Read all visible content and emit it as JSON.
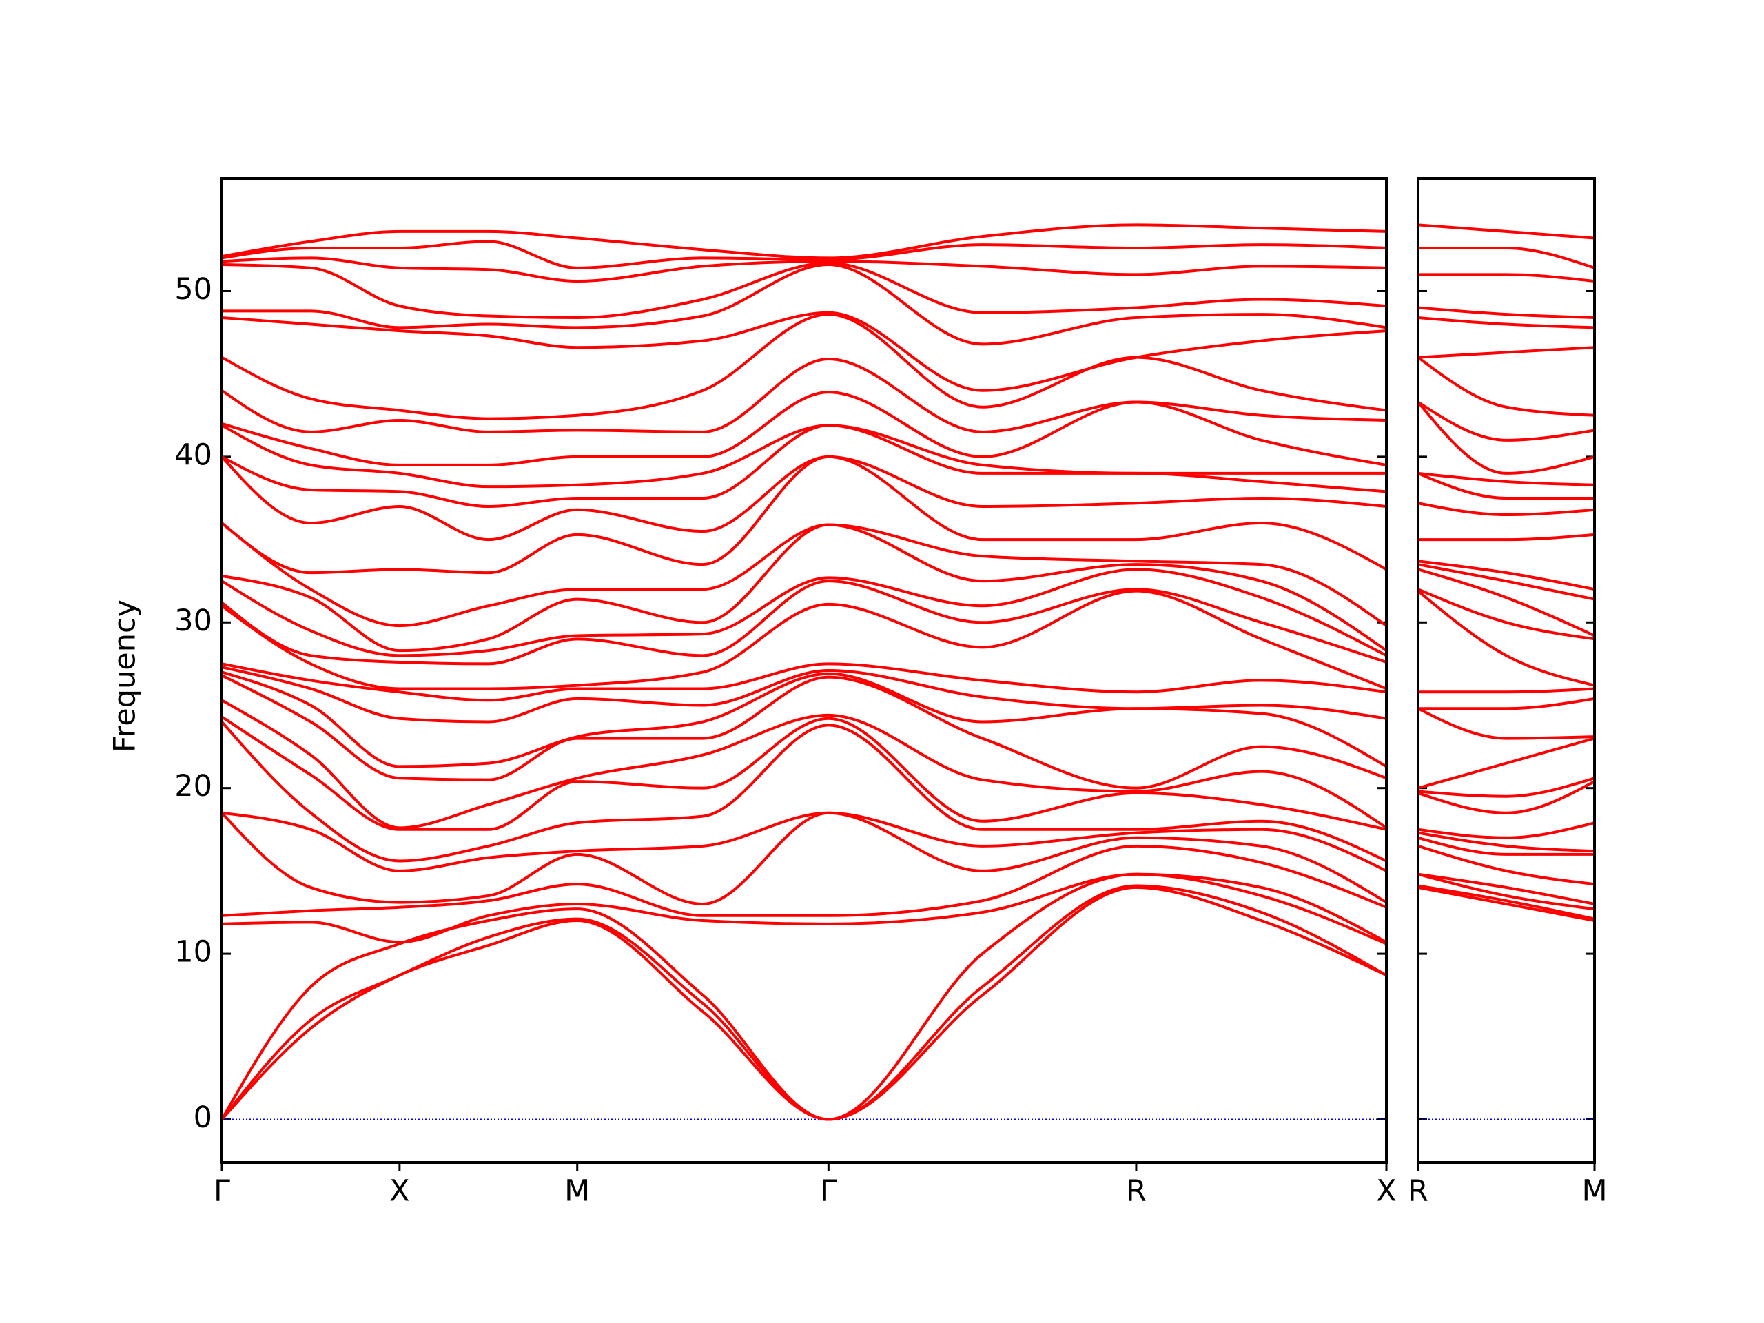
{
  "chart_data": [
    {
      "type": "line",
      "ylabel": "Frequency",
      "color": "#ff0000",
      "reference_line": {
        "value": 0,
        "color": "#0000ff"
      },
      "x": [
        0,
        0.5,
        1,
        1.5,
        2,
        2.707,
        3.414,
        4.28,
        5.146,
        5.85,
        6.554
      ],
      "xlim": [
        0,
        6.554
      ],
      "xticks": [
        {
          "value": 0,
          "label": "Γ"
        },
        {
          "value": 1,
          "label": "X"
        },
        {
          "value": 2,
          "label": "M"
        },
        {
          "value": 3.414,
          "label": "Γ"
        },
        {
          "value": 5.146,
          "label": "R"
        },
        {
          "value": 6.554,
          "label": "X"
        }
      ],
      "ylim": [
        -2.6,
        56.8
      ],
      "yticks": [
        0,
        10,
        20,
        30,
        40,
        50
      ],
      "ytick_labels": true,
      "series": [
        {
          "values": [
            0,
            5.5,
            8.7,
            10.5,
            12,
            6.5,
            0,
            7.5,
            14,
            12,
            8.7
          ]
        },
        {
          "values": [
            0,
            6,
            8.7,
            11,
            12.1,
            7,
            0,
            8,
            14.1,
            12.5,
            8.7
          ]
        },
        {
          "values": [
            0,
            8,
            10.6,
            12,
            12.7,
            7.5,
            0,
            10,
            14.8,
            13.5,
            10.6
          ]
        },
        {
          "values": [
            11.8,
            11.9,
            10.7,
            12.3,
            13,
            12,
            11.8,
            12.5,
            14.8,
            14,
            10.7
          ]
        },
        {
          "values": [
            12.3,
            12.6,
            12.8,
            13.2,
            14.2,
            12.3,
            12.3,
            13.2,
            16.5,
            15.5,
            12.8
          ]
        },
        {
          "values": [
            18.5,
            14,
            13.1,
            13.5,
            16,
            13,
            18.5,
            15,
            17,
            16.5,
            13.1
          ]
        },
        {
          "values": [
            18.5,
            17.5,
            15,
            15.8,
            16.2,
            16.5,
            18.5,
            16.5,
            17.3,
            17.5,
            15
          ]
        },
        {
          "values": [
            24,
            18.5,
            15.6,
            16.5,
            17.9,
            18.3,
            23.8,
            17.5,
            17.5,
            18,
            15.6
          ]
        },
        {
          "values": [
            24.3,
            20.8,
            17.5,
            17.5,
            20.4,
            20,
            24.2,
            18,
            19.7,
            19,
            17.5
          ]
        },
        {
          "values": [
            25.3,
            22,
            17.6,
            19,
            20.6,
            22,
            24.4,
            20.5,
            19.8,
            21,
            17.6
          ]
        },
        {
          "values": [
            26.8,
            24,
            20.6,
            20.5,
            23,
            23,
            26.7,
            23,
            20,
            22.5,
            20.6
          ]
        },
        {
          "values": [
            27,
            25,
            21.3,
            21.5,
            23.1,
            24,
            26.9,
            24,
            24.8,
            24.5,
            21.3
          ]
        },
        {
          "values": [
            27.3,
            26,
            24.2,
            24,
            25.4,
            25,
            27.1,
            25.5,
            24.8,
            25,
            24.2
          ]
        },
        {
          "values": [
            27.5,
            26.5,
            25.8,
            25.3,
            26,
            26,
            27.5,
            26.5,
            25.8,
            26.5,
            25.8
          ]
        },
        {
          "values": [
            31,
            27.5,
            26,
            26,
            26.2,
            27,
            31.1,
            28.5,
            31.9,
            29,
            26
          ]
        },
        {
          "values": [
            31.2,
            28,
            27.6,
            27.5,
            29,
            28,
            32.5,
            30,
            32,
            30,
            27.6
          ]
        },
        {
          "values": [
            32.5,
            29.5,
            28,
            28.3,
            29.2,
            29.3,
            32.7,
            31,
            33.2,
            31.5,
            28
          ]
        },
        {
          "values": [
            32.8,
            31.5,
            28.3,
            29,
            31.4,
            30,
            35.9,
            32.5,
            33.5,
            32.5,
            28.3
          ]
        },
        {
          "values": [
            36,
            32,
            29.8,
            31,
            32,
            32,
            35.9,
            34,
            33.7,
            33.5,
            29.8
          ]
        },
        {
          "values": [
            36,
            33,
            33.2,
            33,
            35.3,
            33.5,
            40,
            35,
            35,
            36,
            33.2
          ]
        },
        {
          "values": [
            40,
            36,
            37,
            35,
            36.8,
            35.5,
            40,
            37,
            37.2,
            37.5,
            37
          ]
        },
        {
          "values": [
            40,
            38,
            37.9,
            37,
            37.5,
            37.5,
            41.9,
            39,
            39,
            38.5,
            37.9
          ]
        },
        {
          "values": [
            41.9,
            39.5,
            39,
            38.2,
            38.3,
            39,
            41.9,
            39.5,
            39,
            39,
            39
          ]
        },
        {
          "values": [
            42,
            40.5,
            39.5,
            39.5,
            40,
            40,
            43.9,
            40,
            43.3,
            41,
            39.5
          ]
        },
        {
          "values": [
            44,
            41.5,
            42.2,
            41.5,
            41.6,
            41.5,
            45.9,
            41.5,
            43.3,
            42.5,
            42.2
          ]
        },
        {
          "values": [
            46,
            43.5,
            42.8,
            42.3,
            42.5,
            44,
            48.6,
            43,
            46,
            44,
            42.8
          ]
        },
        {
          "values": [
            48.4,
            48,
            47.6,
            47.3,
            46.6,
            47,
            48.7,
            44,
            46,
            47,
            47.6
          ]
        },
        {
          "values": [
            48.8,
            48.8,
            47.8,
            48,
            47.8,
            48.5,
            51.6,
            46.8,
            48.4,
            48.6,
            47.8
          ]
        },
        {
          "values": [
            51.6,
            51.4,
            49.1,
            48.5,
            48.4,
            49.5,
            51.7,
            48.7,
            49,
            49.5,
            49.1
          ]
        },
        {
          "values": [
            51.8,
            52,
            51.4,
            51.3,
            50.6,
            51.5,
            51.8,
            51.5,
            51,
            51.5,
            51.4
          ]
        },
        {
          "values": [
            52,
            52.6,
            52.6,
            53,
            51.4,
            52,
            51.9,
            52.8,
            52.6,
            52.8,
            52.6
          ]
        },
        {
          "values": [
            52.1,
            53,
            53.6,
            53.6,
            53.2,
            52.5,
            52,
            53.3,
            54,
            53.8,
            53.6
          ]
        }
      ]
    },
    {
      "type": "line",
      "color": "#ff0000",
      "reference_line": {
        "value": 0,
        "color": "#0000ff"
      },
      "x": [
        0,
        0.5,
        1
      ],
      "xlim": [
        0,
        1
      ],
      "xticks": [
        {
          "value": 0,
          "label": "R"
        },
        {
          "value": 1,
          "label": "M"
        }
      ],
      "ylim": [
        -2.6,
        56.8
      ],
      "yticks": [
        0,
        10,
        20,
        30,
        40,
        50
      ],
      "ytick_labels": false,
      "series": [
        {
          "values": [
            14,
            13,
            12
          ]
        },
        {
          "values": [
            14.1,
            13.2,
            12.1
          ]
        },
        {
          "values": [
            14.8,
            13.5,
            12.7
          ]
        },
        {
          "values": [
            14.8,
            14,
            13
          ]
        },
        {
          "values": [
            16.5,
            15,
            14.2
          ]
        },
        {
          "values": [
            17,
            16,
            16
          ]
        },
        {
          "values": [
            17.3,
            16.5,
            16.2
          ]
        },
        {
          "values": [
            17.5,
            17,
            17.9
          ]
        },
        {
          "values": [
            19.7,
            18.5,
            20.4
          ]
        },
        {
          "values": [
            19.8,
            19.5,
            20.6
          ]
        },
        {
          "values": [
            20,
            21.5,
            23
          ]
        },
        {
          "values": [
            24.8,
            23,
            23.1
          ]
        },
        {
          "values": [
            24.8,
            24.8,
            25.4
          ]
        },
        {
          "values": [
            25.8,
            25.8,
            26
          ]
        },
        {
          "values": [
            31.9,
            28,
            26.2
          ]
        },
        {
          "values": [
            32,
            30,
            29
          ]
        },
        {
          "values": [
            33.2,
            31.5,
            29.2
          ]
        },
        {
          "values": [
            33.5,
            32.5,
            31.4
          ]
        },
        {
          "values": [
            33.7,
            33,
            32
          ]
        },
        {
          "values": [
            35,
            35,
            35.3
          ]
        },
        {
          "values": [
            37.2,
            36.5,
            36.8
          ]
        },
        {
          "values": [
            39,
            37.5,
            37.5
          ]
        },
        {
          "values": [
            39,
            38.5,
            38.3
          ]
        },
        {
          "values": [
            43.3,
            39,
            40
          ]
        },
        {
          "values": [
            43.3,
            41,
            41.6
          ]
        },
        {
          "values": [
            46,
            43,
            42.5
          ]
        },
        {
          "values": [
            46,
            46.3,
            46.6
          ]
        },
        {
          "values": [
            48.4,
            48,
            47.8
          ]
        },
        {
          "values": [
            49,
            48.6,
            48.4
          ]
        },
        {
          "values": [
            51,
            51,
            50.6
          ]
        },
        {
          "values": [
            52.6,
            52.6,
            51.4
          ]
        },
        {
          "values": [
            54,
            53.6,
            53.2
          ]
        }
      ]
    }
  ]
}
